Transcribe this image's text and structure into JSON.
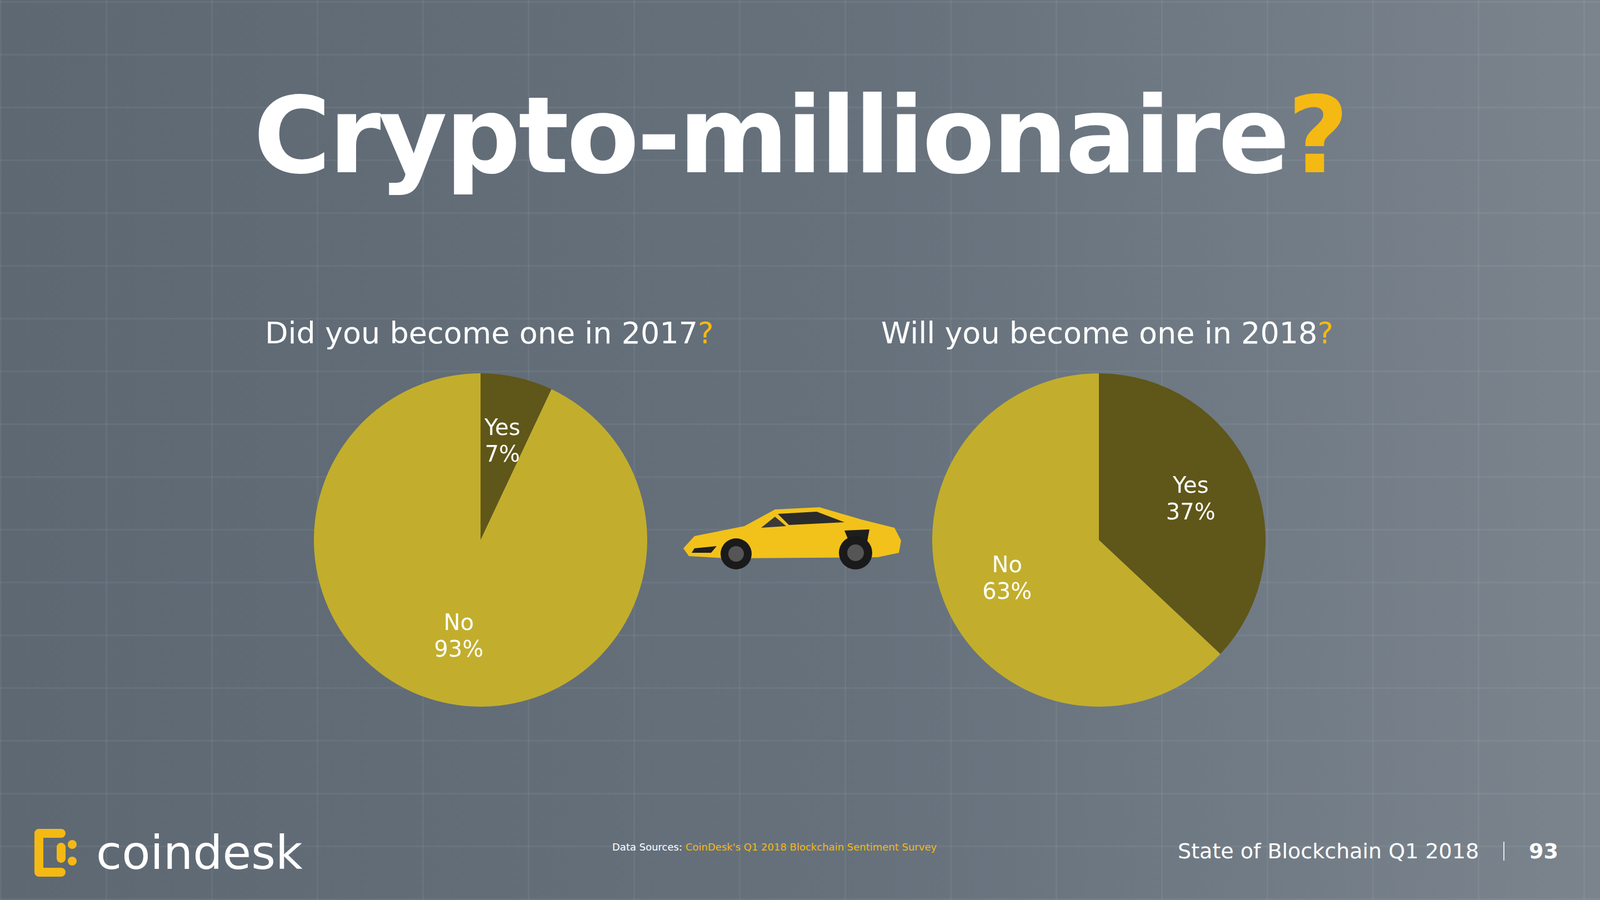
{
  "title": "Crypto-millionaire?",
  "chart_data": [
    {
      "type": "pie",
      "title": "Did you become one in 2017?",
      "categories": [
        "Yes",
        "No"
      ],
      "values": [
        7,
        93
      ],
      "value_labels": [
        "7%",
        "93%"
      ],
      "colors": [
        "#5f5619",
        "#c2ae2c"
      ],
      "data_labels": true
    },
    {
      "type": "pie",
      "title": "Will you become one in 2018?",
      "categories": [
        "Yes",
        "No"
      ],
      "values": [
        37,
        63
      ],
      "value_labels": [
        "37%",
        "63%"
      ],
      "colors": [
        "#5f5619",
        "#c2ae2c"
      ],
      "data_labels": true
    }
  ],
  "footer": {
    "logo": "coindesk",
    "source_label": "Data Sources:",
    "source": "CoinDesk's Q1 2018 Blockchain Sentiment Survey",
    "report": "State of Blockchain Q1 2018",
    "page": "93"
  }
}
